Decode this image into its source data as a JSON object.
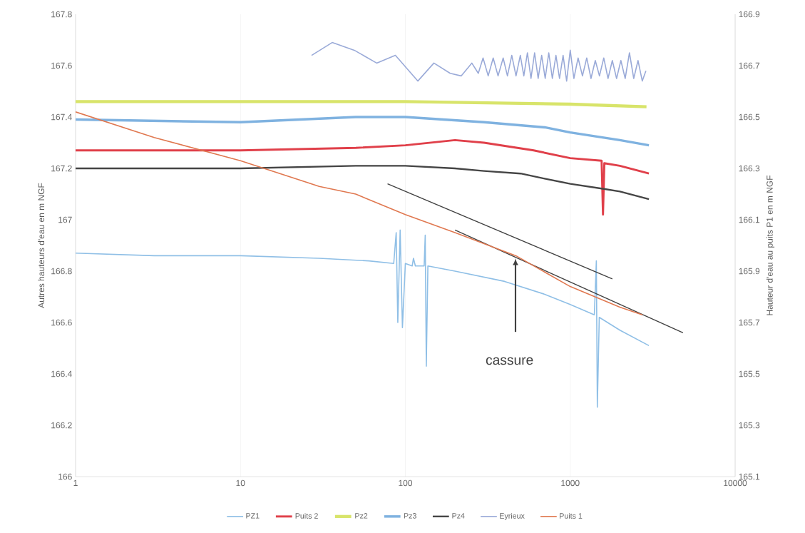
{
  "chart_data": {
    "type": "line",
    "ylabel": "Autres hauteurs d'eau en m NGF",
    "y2label": "Hauteur d'eau au puits P1 en m NGF",
    "log": "x",
    "grid": "x",
    "legend": "bottom",
    "marker": "none",
    "line_style": "solid",
    "xlim": [
      1,
      10000
    ],
    "xticks": [
      1,
      10,
      100,
      1000,
      10000
    ],
    "ylim": [
      166,
      167.8
    ],
    "yticks": [
      166,
      166.2,
      166.4,
      166.6,
      166.8,
      167,
      167.2,
      167.4,
      167.6,
      167.8
    ],
    "y2lim": [
      165.1,
      166.9
    ],
    "y2ticks": [
      165.1,
      165.3,
      165.5,
      165.7,
      165.9,
      166.1,
      166.3,
      166.5,
      166.7,
      166.9
    ],
    "annotations": [
      "cassure"
    ],
    "series": [
      {
        "name": "PZ1",
        "color": "#8fbfe6",
        "x": [
          1,
          3,
          10,
          30,
          60,
          85,
          88,
          90,
          93,
          96,
          100,
          110,
          112,
          115,
          130,
          132,
          134,
          137,
          200,
          400,
          700,
          1000,
          1400,
          1440,
          1460,
          1500,
          2000,
          3000
        ],
        "values": [
          166.87,
          166.86,
          166.86,
          166.85,
          166.84,
          166.83,
          166.95,
          166.6,
          166.96,
          166.58,
          166.83,
          166.82,
          166.85,
          166.82,
          166.82,
          166.94,
          166.43,
          166.82,
          166.8,
          166.76,
          166.71,
          166.67,
          166.63,
          166.84,
          166.27,
          166.62,
          166.57,
          166.51
        ]
      },
      {
        "name": "Puits 2",
        "color": "#e0404a",
        "x": [
          1,
          10,
          50,
          100,
          200,
          300,
          600,
          1000,
          1550,
          1580,
          1610,
          2000,
          3000
        ],
        "values": [
          167.27,
          167.27,
          167.28,
          167.29,
          167.31,
          167.3,
          167.27,
          167.24,
          167.23,
          167.02,
          167.22,
          167.21,
          167.18
        ]
      },
      {
        "name": "Pz2",
        "color": "#d8e46a",
        "x": [
          1,
          100,
          1000,
          2900
        ],
        "values": [
          167.46,
          167.46,
          167.45,
          167.44
        ]
      },
      {
        "name": "Pz3",
        "color": "#7fb2e0",
        "x": [
          1,
          10,
          50,
          100,
          300,
          700,
          1000,
          2000,
          3000
        ],
        "values": [
          167.39,
          167.38,
          167.4,
          167.4,
          167.38,
          167.36,
          167.34,
          167.31,
          167.29
        ]
      },
      {
        "name": "Pz4",
        "color": "#454545",
        "x": [
          1,
          10,
          50,
          100,
          200,
          300,
          500,
          700,
          1000,
          1600,
          2000,
          3000
        ],
        "values": [
          167.2,
          167.2,
          167.21,
          167.21,
          167.2,
          167.19,
          167.18,
          167.16,
          167.14,
          167.12,
          167.11,
          167.08
        ]
      },
      {
        "name": "Eyrieux",
        "color": "#9aaad8",
        "x": [
          27,
          36,
          49,
          67,
          87,
          119,
          149,
          187,
          218,
          253,
          277,
          296,
          318,
          341,
          365,
          392,
          416,
          442,
          469,
          498,
          523,
          550,
          578,
          608,
          639,
          671,
          705,
          741,
          779,
          819,
          861,
          905,
          951,
          1000,
          1052,
          1116,
          1186,
          1259,
          1336,
          1419,
          1504,
          1597,
          1695,
          1800,
          1910,
          2028,
          2154,
          2286,
          2427,
          2577,
          2735,
          2877
        ],
        "values": [
          167.64,
          167.69,
          167.66,
          167.61,
          167.64,
          167.54,
          167.61,
          167.57,
          167.56,
          167.61,
          167.57,
          167.63,
          167.56,
          167.63,
          167.56,
          167.63,
          167.56,
          167.64,
          167.56,
          167.64,
          167.56,
          167.65,
          167.55,
          167.65,
          167.55,
          167.64,
          167.55,
          167.65,
          167.55,
          167.64,
          167.55,
          167.64,
          167.54,
          167.66,
          167.55,
          167.63,
          167.56,
          167.63,
          167.55,
          167.62,
          167.56,
          167.63,
          167.55,
          167.62,
          167.55,
          167.62,
          167.55,
          167.65,
          167.55,
          167.62,
          167.54,
          167.58
        ]
      },
      {
        "name": "Puits 1",
        "color": "#e07850",
        "axis": "y2",
        "x": [
          1,
          3,
          10,
          30,
          50,
          100,
          200,
          468,
          1000,
          2000,
          2740
        ],
        "values": [
          166.52,
          166.42,
          166.33,
          166.23,
          166.2,
          166.12,
          166.05,
          165.96,
          165.84,
          165.76,
          165.73
        ]
      },
      {
        "type": "line",
        "color": "#404040",
        "x": [
          200,
          4830
        ],
        "values": [
          166.96,
          166.56
        ]
      },
      {
        "type": "line",
        "color": "#404040",
        "x": [
          78,
          1800
        ],
        "values": [
          167.14,
          166.77
        ]
      }
    ]
  }
}
